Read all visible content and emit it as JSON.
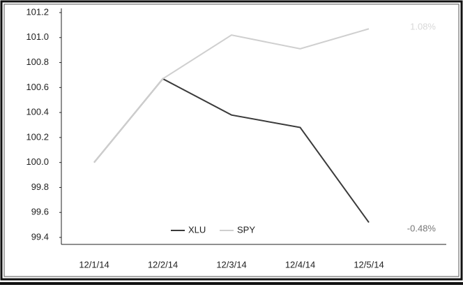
{
  "chart_data": {
    "type": "line",
    "categories": [
      "12/1/14",
      "12/2/14",
      "12/3/14",
      "12/4/14",
      "12/5/14"
    ],
    "series": [
      {
        "name": "XLU",
        "color": "#3a3a3a",
        "values": [
          100.0,
          100.67,
          100.38,
          100.28,
          99.52
        ],
        "annotation": "-0.48%"
      },
      {
        "name": "SPY",
        "color": "#cfcfcf",
        "values": [
          100.0,
          100.67,
          101.02,
          100.91,
          101.07
        ],
        "annotation": "1.08%"
      }
    ],
    "ylim": [
      99.4,
      101.2
    ],
    "yticks": [
      99.4,
      99.6,
      99.8,
      {
        "value": 100.0,
        "label": "100.0"
      },
      100.2,
      100.4,
      100.6,
      100.8,
      {
        "value": 101.0,
        "label": "101.0"
      },
      101.2
    ],
    "legend": "bottom"
  }
}
